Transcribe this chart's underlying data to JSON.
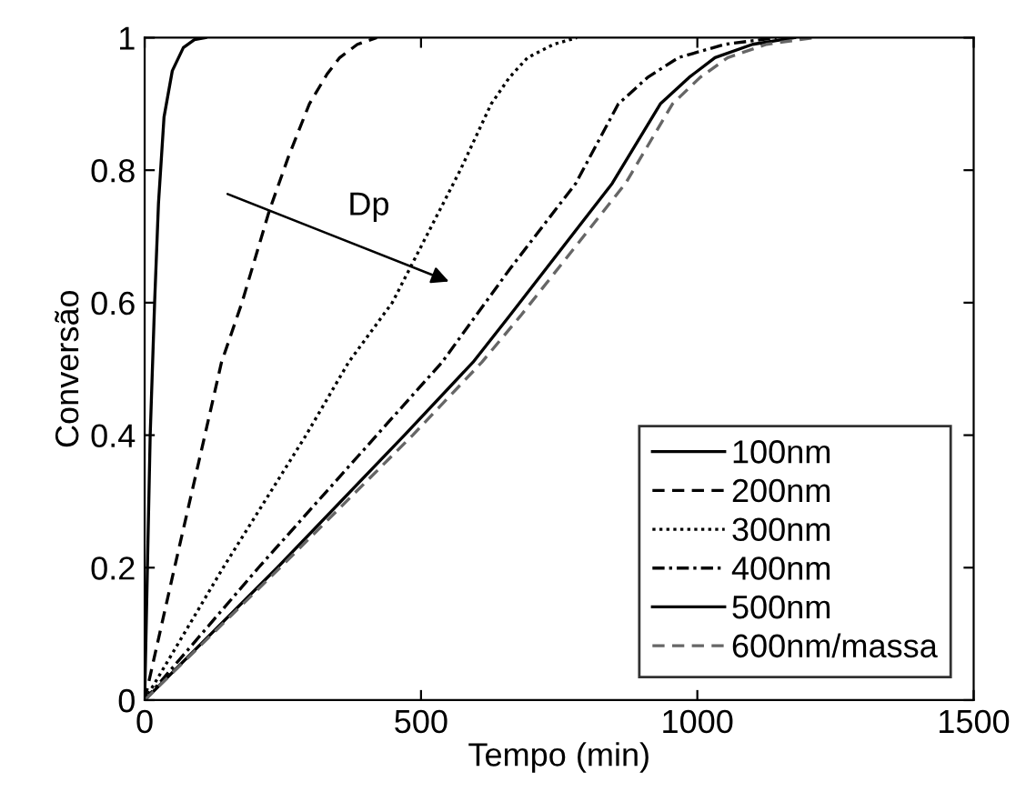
{
  "chart_data": {
    "type": "line",
    "xlabel": "Tempo (min)",
    "ylabel": "Conversão",
    "xlim": [
      0,
      1500
    ],
    "ylim": [
      0,
      1
    ],
    "xticks": [
      0,
      500,
      1000,
      1500
    ],
    "yticks": [
      0,
      0.2,
      0.4,
      0.6,
      0.8,
      1
    ],
    "grid": false,
    "legend": "bottom right",
    "marker": "none",
    "annotations": [
      "Dp"
    ],
    "series": [
      {
        "name": "100nm",
        "color": "#000000",
        "line_style": "solid",
        "x": [
          0,
          5,
          10,
          18,
          25,
          35,
          50,
          70,
          90,
          110
        ],
        "values": [
          0,
          0.2,
          0.4,
          0.6,
          0.75,
          0.88,
          0.95,
          0.985,
          0.997,
          1
        ]
      },
      {
        "name": "200nm",
        "color": "#000000",
        "line_style": "dashed",
        "x": [
          0,
          54,
          109,
          139,
          176,
          226,
          260,
          298,
          330,
          353,
          385,
          420
        ],
        "values": [
          0,
          0.2,
          0.4,
          0.51,
          0.6,
          0.74,
          0.82,
          0.9,
          0.945,
          0.97,
          0.99,
          1
        ]
      },
      {
        "name": "300nm",
        "color": "#000000",
        "line_style": "dotted",
        "x": [
          0,
          142,
          292,
          369,
          448,
          571,
          627,
          660,
          693,
          740,
          782
        ],
        "values": [
          0,
          0.2,
          0.4,
          0.51,
          0.6,
          0.8,
          0.9,
          0.94,
          0.97,
          0.99,
          1
        ]
      },
      {
        "name": "400nm",
        "color": "#000000",
        "line_style": "dashdot",
        "x": [
          0,
          206,
          420,
          538,
          660,
          780,
          857,
          910,
          966,
          1050,
          1143
        ],
        "values": [
          0,
          0.2,
          0.4,
          0.51,
          0.65,
          0.78,
          0.9,
          0.94,
          0.97,
          0.99,
          1
        ]
      },
      {
        "name": "500nm",
        "color": "#000000",
        "line_style": "solid",
        "x": [
          0,
          240,
          470,
          594,
          660,
          846,
          933,
          985,
          1032,
          1100,
          1176
        ],
        "values": [
          0,
          0.2,
          0.4,
          0.51,
          0.58,
          0.78,
          0.9,
          0.94,
          0.97,
          0.99,
          1
        ]
      },
      {
        "name": "600nm/massa",
        "color": "#666666",
        "line_style": "dashed",
        "x": [
          0,
          245,
          485,
          610,
          680,
          870,
          955,
          1005,
          1055,
          1125,
          1210
        ],
        "values": [
          0,
          0.2,
          0.4,
          0.51,
          0.58,
          0.78,
          0.9,
          0.94,
          0.97,
          0.99,
          1
        ]
      }
    ]
  }
}
